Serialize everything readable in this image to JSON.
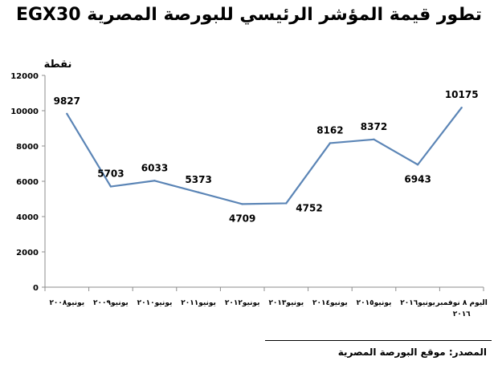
{
  "chart_data": {
    "type": "line",
    "title": "تطور قيمة المؤشر الرئيسي للبورصة المصرية EGX30",
    "ylabel": "نقطة",
    "xlabel": "",
    "ylim": [
      0,
      12000
    ],
    "y_ticks": [
      "0",
      "2000",
      "4000",
      "6000",
      "8000",
      "10000",
      "12000"
    ],
    "grid": false,
    "categories": [
      "يونيو٢٠٠٨",
      "يونيو٢٠٠٩",
      "يونيو٢٠١٠",
      "يونيو٢٠١١",
      "يونيو٢٠١٢",
      "يونيو٢٠١٣",
      "يونيو٢٠١٤",
      "يونيو٢٠١٥",
      "يونيو٢٠١٦",
      "اليوم ٨ نوفمبر ٢٠١٦"
    ],
    "series": [
      {
        "values": [
          9827,
          5703,
          6033,
          5373,
          4709,
          4752,
          8162,
          8372,
          6943,
          10175
        ],
        "labels": [
          "9827",
          "5703",
          "6033",
          "5373",
          "4709",
          "4752",
          "8162",
          "8372",
          "6943",
          "10175"
        ],
        "color": "#5b85b6"
      }
    ]
  },
  "footer": {
    "source": "المصدر: موقع البورصة المصرية"
  }
}
